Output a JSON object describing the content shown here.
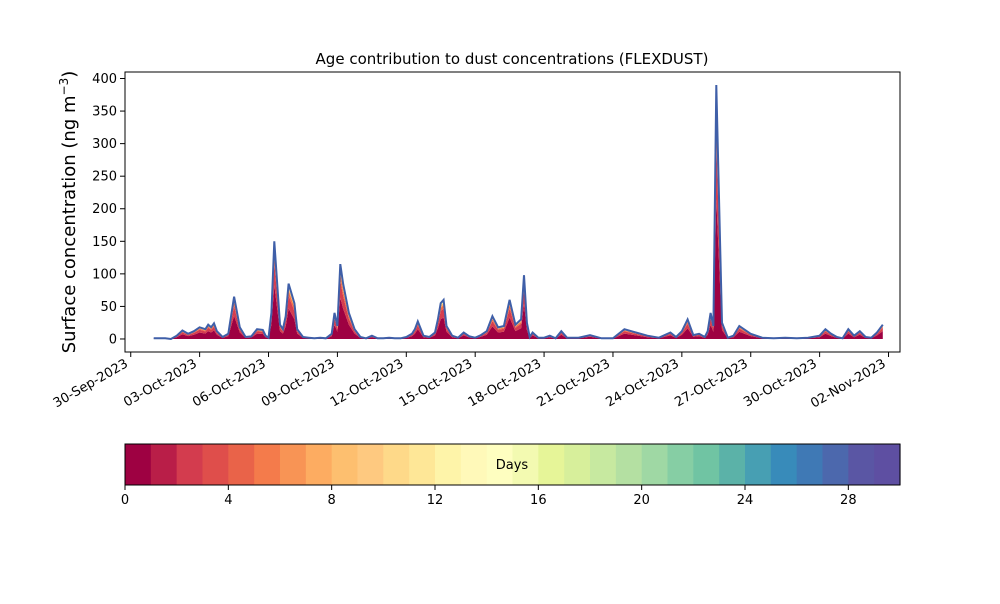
{
  "chart_data": {
    "type": "area",
    "title": "Age contribution to dust concentrations (FLEXDUST)",
    "ylabel": "Surface concentration (ng m",
    "ylabel_superscript": "−3",
    "ylabel_close": ")",
    "xlabel": "",
    "ylim": [
      -20,
      410
    ],
    "yticks": [
      0,
      50,
      100,
      150,
      200,
      250,
      300,
      350,
      400
    ],
    "xlim": [
      "2023-09-29T18:00",
      "2023-11-02T12:00"
    ],
    "xticks": [
      "2023-09-30",
      "2023-10-03",
      "2023-10-06",
      "2023-10-09",
      "2023-10-12",
      "2023-10-15",
      "2023-10-18",
      "2023-10-21",
      "2023-10-24",
      "2023-10-27",
      "2023-10-30",
      "2023-11-02"
    ],
    "xtick_labels": [
      "30-Sep-2023",
      "03-Oct-2023",
      "06-Oct-2023",
      "09-Oct-2023",
      "12-Oct-2023",
      "15-Oct-2023",
      "18-Oct-2023",
      "21-Oct-2023",
      "24-Oct-2023",
      "27-Oct-2023",
      "30-Oct-2023",
      "02-Nov-2023"
    ],
    "total_series": {
      "name": "",
      "x": [
        "2023-10-01T00:00",
        "2023-10-01T12:00",
        "2023-10-01T18:00",
        "2023-10-02T00:00",
        "2023-10-02T06:00",
        "2023-10-02T12:00",
        "2023-10-02T18:00",
        "2023-10-03T00:00",
        "2023-10-03T06:00",
        "2023-10-03T09:00",
        "2023-10-03T12:00",
        "2023-10-03T15:00",
        "2023-10-03T18:00",
        "2023-10-04T00:00",
        "2023-10-04T06:00",
        "2023-10-04T12:00",
        "2023-10-04T18:00",
        "2023-10-05T00:00",
        "2023-10-05T06:00",
        "2023-10-05T12:00",
        "2023-10-05T18:00",
        "2023-10-05T21:00",
        "2023-10-06T00:00",
        "2023-10-06T03:00",
        "2023-10-06T06:00",
        "2023-10-06T12:00",
        "2023-10-06T15:00",
        "2023-10-06T18:00",
        "2023-10-06T21:00",
        "2023-10-07T03:00",
        "2023-10-07T06:00",
        "2023-10-07T12:00",
        "2023-10-07T18:00",
        "2023-10-08T00:00",
        "2023-10-08T06:00",
        "2023-10-08T12:00",
        "2023-10-08T18:00",
        "2023-10-08T21:00",
        "2023-10-09T00:00",
        "2023-10-09T03:00",
        "2023-10-09T06:00",
        "2023-10-09T12:00",
        "2023-10-09T18:00",
        "2023-10-10T00:00",
        "2023-10-10T06:00",
        "2023-10-10T12:00",
        "2023-10-10T18:00",
        "2023-10-11T00:00",
        "2023-10-11T06:00",
        "2023-10-11T12:00",
        "2023-10-11T18:00",
        "2023-10-12T00:00",
        "2023-10-12T06:00",
        "2023-10-12T09:00",
        "2023-10-12T12:00",
        "2023-10-12T18:00",
        "2023-10-13T00:00",
        "2023-10-13T06:00",
        "2023-10-13T09:00",
        "2023-10-13T12:00",
        "2023-10-13T15:00",
        "2023-10-13T18:00",
        "2023-10-14T00:00",
        "2023-10-14T06:00",
        "2023-10-14T12:00",
        "2023-10-14T18:00",
        "2023-10-15T00:00",
        "2023-10-15T06:00",
        "2023-10-15T12:00",
        "2023-10-15T18:00",
        "2023-10-16T00:00",
        "2023-10-16T06:00",
        "2023-10-16T12:00",
        "2023-10-16T18:00",
        "2023-10-17T00:00",
        "2023-10-17T03:00",
        "2023-10-17T06:00",
        "2023-10-17T09:00",
        "2023-10-17T12:00",
        "2023-10-17T18:00",
        "2023-10-18T00:00",
        "2023-10-18T06:00",
        "2023-10-18T12:00",
        "2023-10-18T18:00",
        "2023-10-19T00:00",
        "2023-10-19T12:00",
        "2023-10-20T00:00",
        "2023-10-20T12:00",
        "2023-10-21T00:00",
        "2023-10-21T12:00",
        "2023-10-22T00:00",
        "2023-10-22T12:00",
        "2023-10-23T00:00",
        "2023-10-23T12:00",
        "2023-10-23T18:00",
        "2023-10-24T00:00",
        "2023-10-24T06:00",
        "2023-10-24T12:00",
        "2023-10-24T18:00",
        "2023-10-25T00:00",
        "2023-10-25T03:00",
        "2023-10-25T06:00",
        "2023-10-25T09:00",
        "2023-10-25T12:00",
        "2023-10-25T18:00",
        "2023-10-26T00:00",
        "2023-10-26T06:00",
        "2023-10-26T12:00",
        "2023-10-27T00:00",
        "2023-10-27T12:00",
        "2023-10-28T00:00",
        "2023-10-28T12:00",
        "2023-10-29T00:00",
        "2023-10-29T12:00",
        "2023-10-30T00:00",
        "2023-10-30T06:00",
        "2023-10-30T12:00",
        "2023-10-30T18:00",
        "2023-10-31T00:00",
        "2023-10-31T06:00",
        "2023-10-31T12:00",
        "2023-10-31T18:00",
        "2023-11-01T00:00",
        "2023-11-01T06:00",
        "2023-11-01T12:00",
        "2023-11-01T18:00"
      ],
      "y": [
        1,
        1,
        0,
        5,
        13,
        8,
        12,
        18,
        15,
        22,
        18,
        24,
        12,
        3,
        8,
        65,
        18,
        3,
        4,
        15,
        14,
        5,
        2,
        40,
        150,
        22,
        15,
        35,
        85,
        55,
        15,
        3,
        2,
        1,
        2,
        1,
        8,
        40,
        20,
        115,
        85,
        40,
        15,
        3,
        1,
        5,
        1,
        1,
        2,
        1,
        1,
        3,
        8,
        15,
        27,
        5,
        3,
        10,
        30,
        55,
        60,
        20,
        5,
        2,
        10,
        4,
        2,
        6,
        12,
        35,
        18,
        20,
        60,
        22,
        30,
        98,
        25,
        3,
        10,
        2,
        2,
        5,
        1,
        12,
        2,
        2,
        6,
        1,
        1,
        15,
        10,
        5,
        2,
        10,
        3,
        12,
        30,
        6,
        8,
        3,
        12,
        40,
        20,
        390,
        25,
        2,
        5,
        20,
        8,
        2,
        1,
        2,
        1,
        2,
        5,
        15,
        8,
        3,
        1,
        15,
        5,
        12,
        3,
        2,
        10,
        22
      ]
    },
    "colorbar": {
      "label": "Days",
      "min": 0,
      "max": 30,
      "ticks": [
        0,
        4,
        8,
        12,
        16,
        20,
        24,
        28
      ],
      "colors": [
        "#9e0142",
        "#b91e48",
        "#d33c4e",
        "#df4e4b",
        "#e96349",
        "#f47b4b",
        "#f89455",
        "#fdac61",
        "#fdbf6f",
        "#fec980",
        "#fed989",
        "#fee797",
        "#fef4a9",
        "#fff9b9",
        "#fefec0",
        "#f3fab1",
        "#e6f598",
        "#d7ef9b",
        "#c7e9a0",
        "#b4e0a2",
        "#9fd8a4",
        "#86cea4",
        "#70c4a3",
        "#5bb2a8",
        "#479fb3",
        "#388bba",
        "#3f79b5",
        "#4c68ad",
        "#5a56a4",
        "#5e4fa2"
      ]
    },
    "fill_colors": [
      "#9e0142",
      "#d53e4f",
      "#f46d43",
      "#fdae61",
      "#fee08b",
      "#e6f598",
      "#abdda4",
      "#66c2a5",
      "#3288bd"
    ],
    "outline_color": "#3f5fa8",
    "grid": false,
    "legend": "none"
  }
}
